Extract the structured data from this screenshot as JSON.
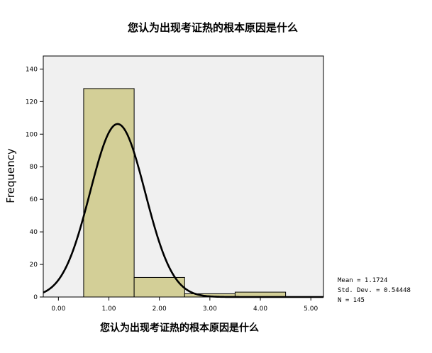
{
  "chart_data": {
    "type": "bar",
    "subtype": "histogram-with-normal-curve",
    "title": "您认为出现考证热的根本原因是什么",
    "xlabel": "您认为出现考证热的根本原因是什么",
    "ylabel": "Frequency",
    "xlim": [
      -0.3,
      5.25
    ],
    "ylim": [
      0,
      148
    ],
    "x_ticks": [
      "0.00",
      "1.00",
      "2.00",
      "3.00",
      "4.00",
      "5.00"
    ],
    "x_tick_values": [
      0,
      1,
      2,
      3,
      4,
      5
    ],
    "y_ticks": [
      "0",
      "20",
      "40",
      "60",
      "80",
      "100",
      "120",
      "140"
    ],
    "y_tick_values": [
      0,
      20,
      40,
      60,
      80,
      100,
      120,
      140
    ],
    "bins": [
      {
        "from": 0.5,
        "to": 1.5,
        "frequency": 128
      },
      {
        "from": 1.5,
        "to": 2.5,
        "frequency": 12
      },
      {
        "from": 2.5,
        "to": 3.5,
        "frequency": 2
      },
      {
        "from": 3.5,
        "to": 4.5,
        "frequency": 3
      }
    ],
    "normal_curve": {
      "mean": 1.1724,
      "std_dev": 0.54448,
      "n": 145,
      "bin_width": 1
    },
    "stats_labels": [
      "Mean = 1.1724",
      "Std. Dev. = 0.54448",
      "N = 145"
    ],
    "grid": false,
    "colors": {
      "plot_bg": "#f0f0f0",
      "bar_fill": "#d3cf97",
      "bar_stroke": "#000000",
      "curve": "#000000"
    }
  }
}
